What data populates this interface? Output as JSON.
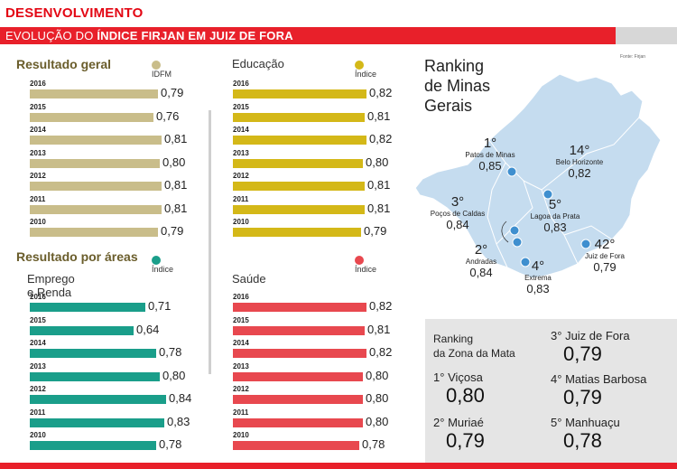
{
  "header": {
    "title": "DESENVOLVIMENTO",
    "subtitle_prefix": "EVOLUÇÃO DO ",
    "subtitle_bold": "ÍNDICE FIRJAN EM JUIZ DE FORA"
  },
  "colors": {
    "idfm": "#c9bd8a",
    "educacao": "#d4b818",
    "emprego": "#1a9e8a",
    "saude": "#e8484f",
    "accent": "#e30613"
  },
  "section_general": "Resultado geral",
  "section_areas": "Resultado por áreas",
  "chart_data": [
    {
      "type": "bar",
      "orientation": "horizontal",
      "key": "geral",
      "title": "",
      "legend": "IDFM",
      "color": "#c9bd8a",
      "xlim": [
        0,
        1
      ],
      "categories": [
        "2016",
        "2015",
        "2014",
        "2013",
        "2012",
        "2011",
        "2010"
      ],
      "values": [
        0.79,
        0.76,
        0.81,
        0.8,
        0.81,
        0.81,
        0.79
      ],
      "labels": [
        "0,79",
        "0,76",
        "0,81",
        "0,80",
        "0,81",
        "0,81",
        "0,79"
      ]
    },
    {
      "type": "bar",
      "orientation": "horizontal",
      "key": "educacao",
      "title": "Educação",
      "legend": "Índice",
      "color": "#d4b818",
      "xlim": [
        0,
        1
      ],
      "categories": [
        "2016",
        "2015",
        "2014",
        "2013",
        "2012",
        "2011",
        "2010"
      ],
      "values": [
        0.82,
        0.81,
        0.82,
        0.8,
        0.81,
        0.81,
        0.79
      ],
      "labels": [
        "0,82",
        "0,81",
        "0,82",
        "0,80",
        "0,81",
        "0,81",
        "0,79"
      ]
    },
    {
      "type": "bar",
      "orientation": "horizontal",
      "key": "emprego",
      "title": "Emprego e Renda",
      "legend": "Índice",
      "color": "#1a9e8a",
      "xlim": [
        0,
        1
      ],
      "categories": [
        "2016",
        "2015",
        "2014",
        "2013",
        "2012",
        "2011",
        "2010"
      ],
      "values": [
        0.71,
        0.64,
        0.78,
        0.8,
        0.84,
        0.83,
        0.78
      ],
      "labels": [
        "0,71",
        "0,64",
        "0,78",
        "0,80",
        "0,84",
        "0,83",
        "0,78"
      ]
    },
    {
      "type": "bar",
      "orientation": "horizontal",
      "key": "saude",
      "title": "Saúde",
      "legend": "Índice",
      "color": "#e8484f",
      "xlim": [
        0,
        1
      ],
      "categories": [
        "2016",
        "2015",
        "2014",
        "2013",
        "2012",
        "2011",
        "2010"
      ],
      "values": [
        0.82,
        0.81,
        0.82,
        0.8,
        0.8,
        0.8,
        0.78
      ],
      "labels": [
        "0,82",
        "0,81",
        "0,82",
        "0,80",
        "0,80",
        "0,80",
        "0,78"
      ]
    }
  ],
  "map": {
    "title_line1": "Ranking",
    "title_line2": "de Minas",
    "title_line3": "Gerais",
    "source": "Fonte: Firjan",
    "cities": [
      {
        "rank": "1°",
        "name": "Patos de Minas",
        "value": "0,85"
      },
      {
        "rank": "14°",
        "name": "Belo Horizonte",
        "value": "0,82"
      },
      {
        "rank": "3°",
        "name": "Poços de Caldas",
        "value": "0,84"
      },
      {
        "rank": "5°",
        "name": "Lagoa da Prata",
        "value": "0,83"
      },
      {
        "rank": "2°",
        "name": "Andradas",
        "value": "0,84"
      },
      {
        "rank": "4°",
        "name": "Extrema",
        "value": "0,83"
      },
      {
        "rank": "42°",
        "name": "Juiz de Fora",
        "value": "0,79"
      }
    ]
  },
  "zona_mata": {
    "title_line1": "Ranking",
    "title_line2": "da Zona da Mata",
    "items": [
      {
        "rank": "1°",
        "name": "Viçosa",
        "value": "0,80"
      },
      {
        "rank": "2°",
        "name": "Muriaé",
        "value": "0,79"
      },
      {
        "rank": "3°",
        "name": "Juiz de Fora",
        "value": "0,79"
      },
      {
        "rank": "4°",
        "name": "Matias Barbosa",
        "value": "0,79"
      },
      {
        "rank": "5°",
        "name": "Manhuaçu",
        "value": "0,78"
      }
    ]
  }
}
